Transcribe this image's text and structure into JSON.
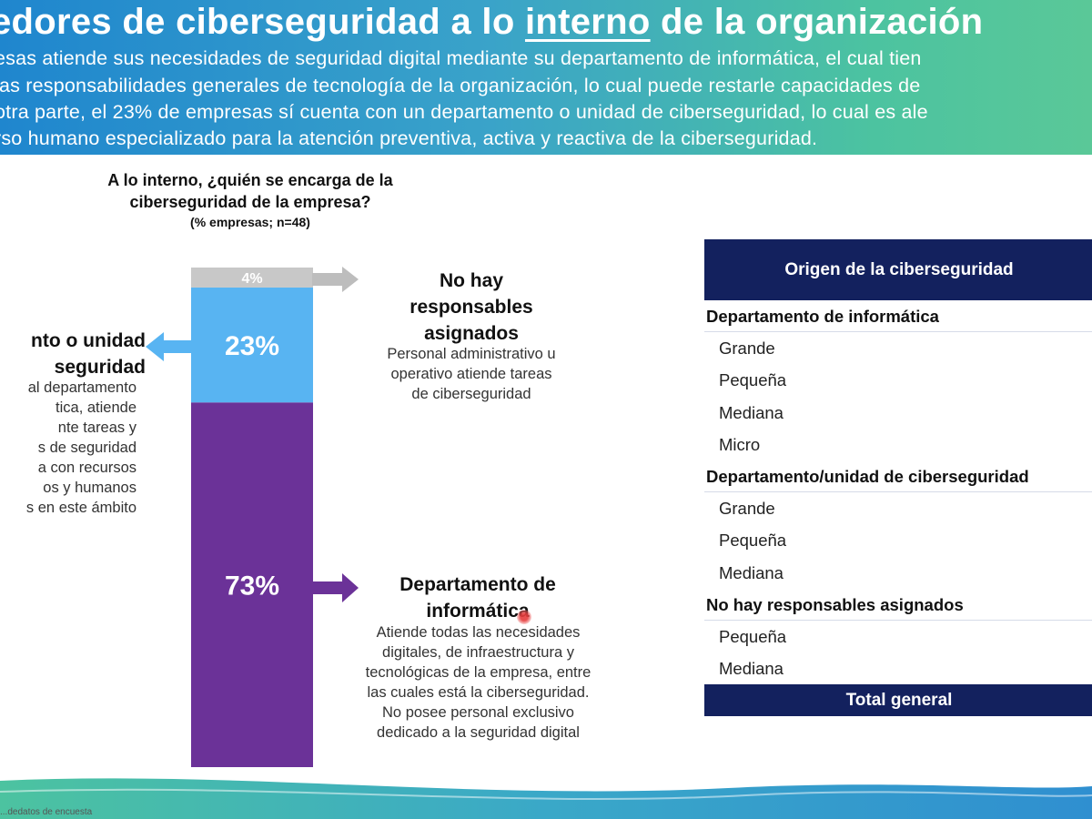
{
  "header": {
    "title_part1": "edores de ciberseguridad a lo ",
    "title_underlined": "interno",
    "title_part2": " de la organización",
    "lines": [
      "esas atiende sus necesidades de seguridad digital mediante su departamento de informática, el cual tien",
      " las responsabilidades generales de tecnología de la organización, lo cual puede restarle capacidades de",
      "otra parte, el 23% de empresas sí cuenta con un departamento o unidad de ciberseguridad, lo cual es ale",
      "rso humano especializado para la atención preventiva, activa y reactiva de la ciberseguridad."
    ]
  },
  "chart_data": {
    "type": "bar",
    "stacked": true,
    "title": "A lo interno, ¿quién se encarga de la ciberseguridad de la empresa?",
    "subtitle": "(% empresas; n=48)",
    "unit": "%",
    "series": [
      {
        "value": 73,
        "label": "73%",
        "color": "#6b3298"
      },
      {
        "value": 23,
        "label": "23%",
        "color": "#58b4f2"
      },
      {
        "value": 4,
        "label": "4%",
        "color": "#c8c8c8"
      }
    ],
    "ylim": [
      0,
      100
    ]
  },
  "annotations": {
    "right_top": {
      "title": [
        "No hay",
        "responsables",
        "asignados"
      ],
      "desc": [
        "Personal administrativo u",
        "operativo atiende tareas",
        "de ciberseguridad"
      ]
    },
    "right_bottom": {
      "title": [
        "Departamento de",
        "informática"
      ],
      "desc": [
        "Atiende todas las necesidades",
        "digitales, de infraestructura y",
        "tecnológicas de la empresa, entre",
        "las cuales está la ciberseguridad.",
        "No posee personal exclusivo",
        "dedicado a la seguridad digital"
      ]
    },
    "left": {
      "title": [
        "nto o unidad",
        "seguridad"
      ],
      "desc": [
        "al departamento",
        "tica, atiende",
        "nte tareas y",
        "s de seguridad",
        "a con recursos",
        "os y humanos",
        "s en este ámbito"
      ]
    }
  },
  "table": {
    "header": "Origen de la ciberseguridad",
    "groups": [
      {
        "name": "Departamento de informática",
        "items": [
          "Grande",
          "Pequeña",
          "Mediana",
          "Micro"
        ]
      },
      {
        "name": "Departamento/unidad de ciberseguridad",
        "items": [
          "Grande",
          "Pequeña",
          "Mediana"
        ]
      },
      {
        "name": "No hay responsables asignados",
        "items": [
          "Pequeña",
          "Mediana"
        ]
      }
    ],
    "total": "Total general"
  },
  "footer": {
    "note": "...dedatos de encuesta"
  },
  "colors": {
    "navy": "#13215e",
    "purple": "#6b3298",
    "light_blue": "#58b4f2",
    "gray": "#c8c8c8"
  }
}
